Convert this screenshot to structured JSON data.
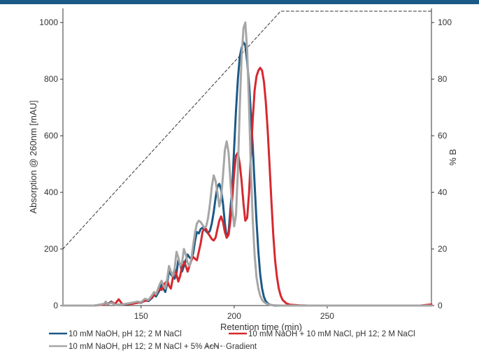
{
  "theme": {
    "accent": "#1a5a86",
    "top_rule_color": "#1a5a86"
  },
  "chart_data": {
    "type": "line",
    "title": "",
    "xlabel": "Retention time (min)",
    "ylabel": "Absorption @ 260nm [mAU]",
    "y2label": "% B",
    "xlim": [
      108,
      306
    ],
    "ylim": [
      0,
      1050
    ],
    "y2lim": [
      0,
      105
    ],
    "x_ticks": [
      150,
      200,
      250
    ],
    "y_ticks": [
      0,
      200,
      400,
      600,
      800,
      1000
    ],
    "y2_ticks": [
      0,
      20,
      40,
      60,
      80,
      100
    ],
    "grid": false,
    "legend_position": "bottom",
    "series": [
      {
        "name": "10 mM NaOH, pH 12; 2 M NaCl",
        "color": "#1a5a86",
        "x": [
          108,
          125,
          130,
          131,
          132,
          134,
          136,
          140,
          145,
          148,
          150,
          152,
          154,
          156,
          157,
          158,
          160,
          161,
          162,
          163,
          164,
          165,
          166,
          168,
          169,
          170,
          171,
          172,
          173,
          175,
          176,
          177,
          178,
          179,
          180,
          181,
          182,
          183,
          184,
          185,
          186,
          187,
          188,
          189,
          190,
          191,
          192,
          193,
          194,
          195,
          196,
          197,
          198,
          199,
          200,
          201,
          202,
          203,
          204,
          205,
          206,
          207,
          208,
          209,
          210,
          211,
          212,
          213,
          214,
          215,
          216,
          217,
          218,
          219,
          220,
          221,
          222,
          224,
          226,
          228,
          230,
          235,
          240,
          250,
          260,
          280,
          300,
          306
        ],
        "y": [
          0,
          0,
          5,
          12,
          6,
          14,
          4,
          3,
          8,
          12,
          10,
          18,
          16,
          28,
          38,
          32,
          55,
          78,
          60,
          48,
          78,
          125,
          110,
          95,
          115,
          160,
          145,
          120,
          140,
          180,
          170,
          165,
          185,
          230,
          260,
          255,
          270,
          275,
          270,
          262,
          255,
          265,
          290,
          330,
          380,
          420,
          430,
          410,
          360,
          290,
          240,
          260,
          340,
          420,
          560,
          690,
          800,
          880,
          910,
          930,
          920,
          860,
          780,
          680,
          560,
          430,
          300,
          190,
          110,
          60,
          30,
          15,
          8,
          4,
          2,
          1,
          0,
          0,
          0,
          0,
          0,
          0,
          0,
          0,
          0,
          0,
          0,
          0
        ]
      },
      {
        "name": "10 mM NaOH + 10 mM NaCl, pH 12; 2 M NaCl",
        "color": "#d7282f",
        "x": [
          108,
          125,
          130,
          131,
          132,
          134,
          136,
          138,
          140,
          145,
          148,
          150,
          152,
          154,
          156,
          158,
          160,
          161,
          162,
          163,
          164,
          165,
          166,
          167,
          168,
          169,
          170,
          171,
          172,
          173,
          174,
          175,
          176,
          177,
          178,
          179,
          180,
          181,
          182,
          183,
          184,
          185,
          186,
          187,
          188,
          189,
          190,
          191,
          192,
          193,
          194,
          195,
          196,
          197,
          198,
          199,
          200,
          201,
          202,
          203,
          204,
          205,
          206,
          207,
          208,
          209,
          210,
          211,
          212,
          213,
          214,
          215,
          216,
          217,
          218,
          219,
          220,
          221,
          222,
          223,
          224,
          225,
          226,
          228,
          230,
          235,
          240,
          250,
          260,
          280,
          300,
          306
        ],
        "y": [
          0,
          0,
          4,
          10,
          4,
          12,
          6,
          22,
          4,
          6,
          10,
          12,
          16,
          20,
          30,
          42,
          60,
          55,
          72,
          80,
          88,
          70,
          60,
          95,
          130,
          110,
          85,
          105,
          140,
          155,
          140,
          120,
          140,
          160,
          172,
          165,
          160,
          190,
          220,
          260,
          275,
          270,
          255,
          245,
          235,
          230,
          240,
          270,
          300,
          315,
          295,
          260,
          240,
          250,
          300,
          380,
          470,
          530,
          540,
          500,
          440,
          360,
          300,
          310,
          400,
          530,
          660,
          760,
          810,
          830,
          840,
          830,
          790,
          720,
          620,
          500,
          370,
          250,
          160,
          100,
          60,
          35,
          20,
          8,
          3,
          1,
          0,
          0,
          0,
          0,
          0,
          4
        ]
      },
      {
        "name": "10 mM NaOH, pH 12; 2 M NaCl + 5% AcN",
        "color": "#a6a6a6",
        "x": [
          108,
          125,
          130,
          131,
          132,
          134,
          136,
          140,
          145,
          148,
          150,
          152,
          154,
          156,
          157,
          158,
          160,
          161,
          162,
          163,
          164,
          165,
          166,
          167,
          168,
          169,
          170,
          171,
          172,
          173,
          174,
          175,
          176,
          177,
          178,
          179,
          180,
          181,
          182,
          183,
          184,
          185,
          186,
          187,
          188,
          189,
          190,
          191,
          192,
          193,
          194,
          195,
          196,
          197,
          198,
          199,
          200,
          201,
          202,
          203,
          204,
          205,
          206,
          207,
          208,
          209,
          210,
          211,
          212,
          213,
          214,
          215,
          216,
          217,
          218,
          220,
          222,
          225,
          230,
          240,
          250,
          300,
          306
        ],
        "y": [
          0,
          0,
          6,
          14,
          5,
          10,
          3,
          4,
          10,
          14,
          12,
          24,
          20,
          38,
          48,
          40,
          75,
          88,
          70,
          60,
          95,
          140,
          120,
          105,
          130,
          190,
          170,
          140,
          150,
          200,
          180,
          150,
          140,
          165,
          215,
          260,
          290,
          300,
          295,
          285,
          275,
          280,
          310,
          360,
          420,
          460,
          440,
          400,
          350,
          380,
          460,
          550,
          580,
          540,
          440,
          340,
          280,
          320,
          480,
          700,
          880,
          980,
          1000,
          900,
          700,
          480,
          300,
          180,
          100,
          60,
          35,
          20,
          12,
          8,
          5,
          2,
          1,
          0,
          0,
          0,
          0,
          0,
          0
        ]
      },
      {
        "name": "Gradient",
        "color": "#333333",
        "dashed": true,
        "axis": "right",
        "x": [
          108,
          225,
          306
        ],
        "y": [
          20,
          104,
          104
        ]
      }
    ]
  }
}
